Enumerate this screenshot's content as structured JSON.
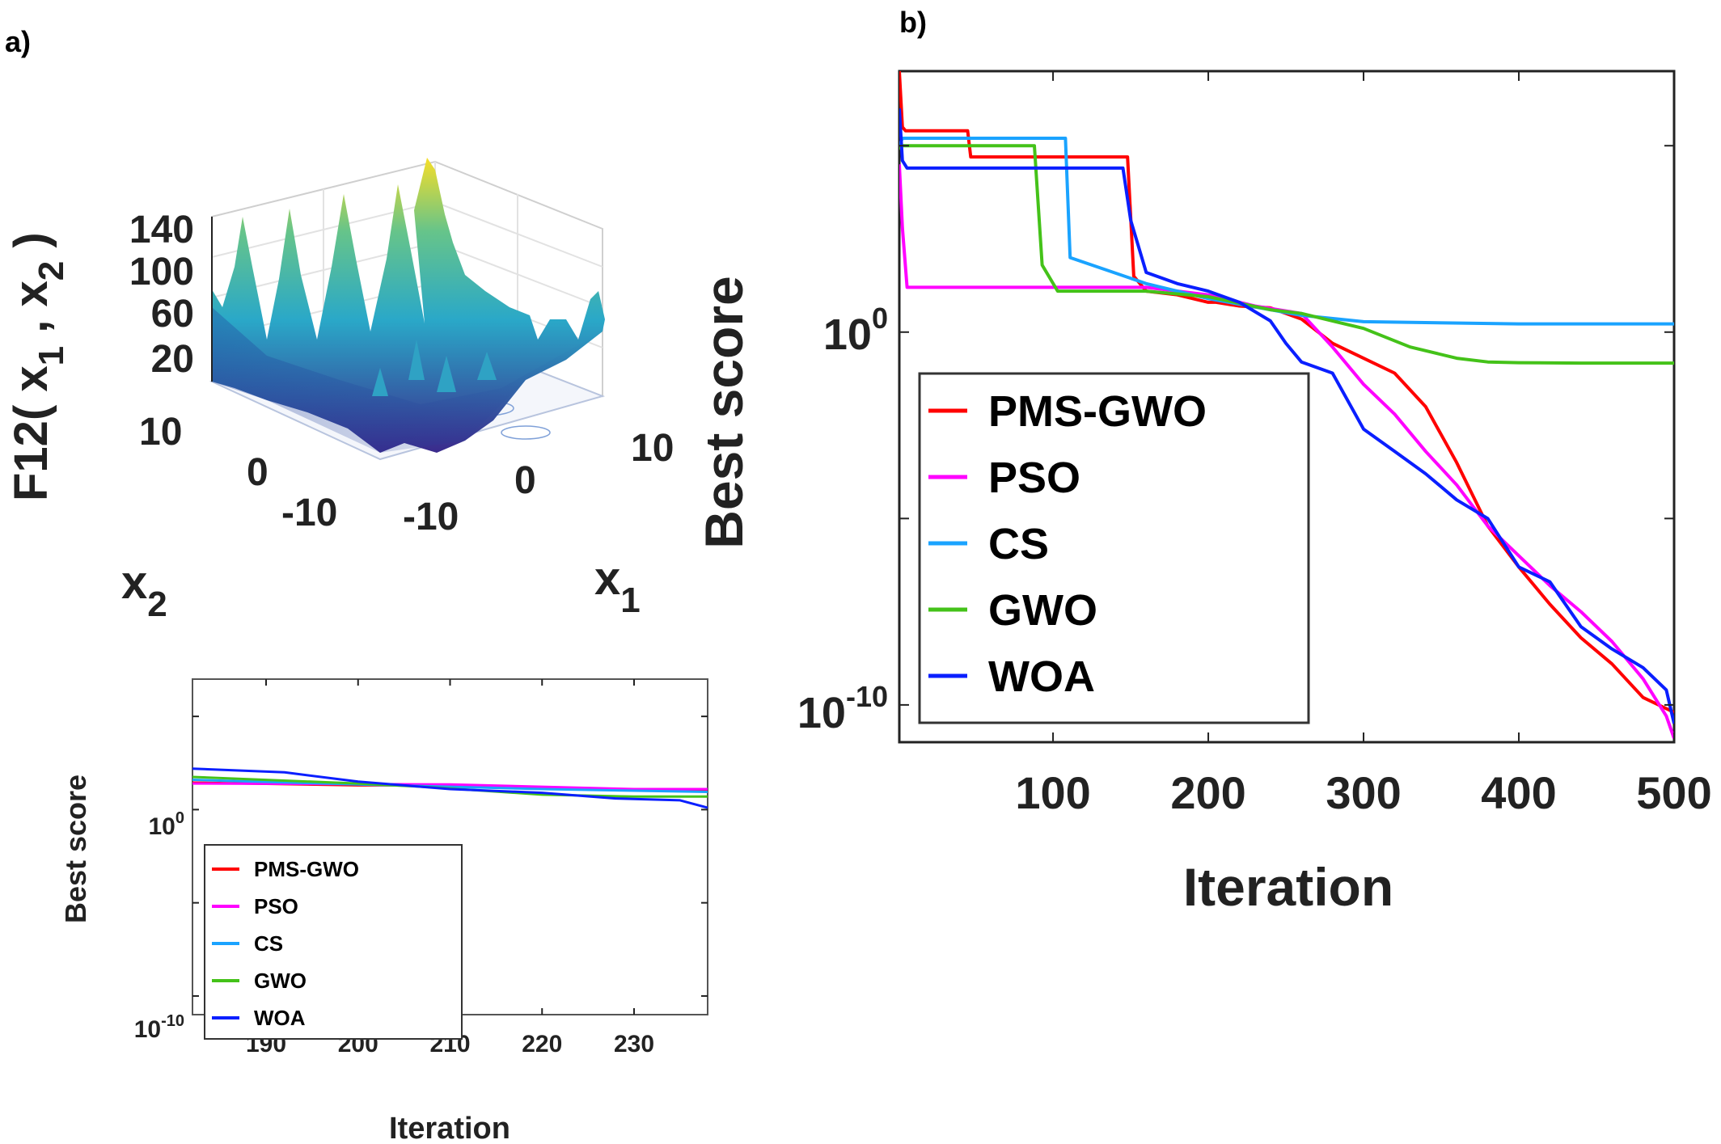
{
  "panels": {
    "a_label": "a)",
    "b_label": "b)"
  },
  "surface": {
    "zlabel": "F12( x",
    "zlabel_sub1": "1",
    "zlabel_sep": " , x",
    "zlabel_sub2": "2",
    "zlabel_end": " )",
    "z_ticks": [
      "140",
      "100",
      "60",
      "20"
    ],
    "x2_label": "x",
    "x2_label_sub": "2",
    "x1_label": "x",
    "x1_label_sub": "1",
    "x2_ticks": [
      "10",
      "0",
      "-10"
    ],
    "x1_ticks": [
      "-10",
      "0",
      "10"
    ],
    "colors": {
      "low": "#3b2a8c",
      "mid": "#2aa8c8",
      "high": "#f6de28"
    }
  },
  "chart_data": [
    {
      "type": "line",
      "id": "main",
      "title": "",
      "xlabel": "Iteration",
      "ylabel": "Best score",
      "xlim": [
        1,
        500
      ],
      "ylim_log10": [
        -11,
        7
      ],
      "yscale": "log",
      "x_ticks": [
        "100",
        "200",
        "300",
        "400",
        "500"
      ],
      "y_ticks": [
        {
          "base": "10",
          "exp": "0"
        },
        {
          "base": "10",
          "exp": "-10"
        }
      ],
      "legend_position": "lower-left",
      "series": [
        {
          "name": "PMS-GWO",
          "color": "#ff0000",
          "x": [
            1,
            3,
            5,
            45,
            47,
            148,
            152,
            160,
            180,
            200,
            205,
            220,
            240,
            260,
            280,
            300,
            320,
            340,
            360,
            380,
            400,
            420,
            440,
            460,
            480,
            500
          ],
          "log10_y": [
            7,
            5.5,
            5.4,
            5.4,
            4.7,
            4.7,
            1.5,
            1.1,
            1.0,
            0.8,
            0.8,
            0.7,
            0.65,
            0.35,
            -0.3,
            -0.7,
            -1.1,
            -2.0,
            -3.5,
            -5.2,
            -6.3,
            -7.3,
            -8.2,
            -8.9,
            -9.8,
            -10.2
          ]
        },
        {
          "name": "PSO",
          "color": "#ff00ff",
          "x": [
            1,
            3,
            6,
            10,
            160,
            200,
            230,
            260,
            280,
            300,
            320,
            340,
            360,
            380,
            400,
            420,
            440,
            460,
            480,
            495,
            500
          ],
          "log10_y": [
            4.5,
            2.8,
            1.2,
            1.2,
            1.2,
            1.0,
            0.7,
            0.5,
            -0.4,
            -1.4,
            -2.2,
            -3.2,
            -4.1,
            -5.2,
            -6.0,
            -6.8,
            -7.5,
            -8.3,
            -9.3,
            -10.3,
            -10.9
          ]
        },
        {
          "name": "CS",
          "color": "#1aa3ff",
          "x": [
            1,
            3,
            108,
            111,
            160,
            180,
            200,
            260,
            300,
            400,
            500
          ],
          "log10_y": [
            5.0,
            5.2,
            5.2,
            2.0,
            1.3,
            1.1,
            0.9,
            0.45,
            0.28,
            0.22,
            0.22
          ]
        },
        {
          "name": "GWO",
          "color": "#44c219",
          "x": [
            1,
            3,
            88,
            93,
            103,
            160,
            200,
            240,
            260,
            300,
            330,
            360,
            380,
            400,
            440,
            500
          ],
          "log10_y": [
            4.9,
            5.0,
            5.0,
            1.8,
            1.1,
            1.1,
            0.95,
            0.6,
            0.5,
            0.1,
            -0.4,
            -0.7,
            -0.8,
            -0.82,
            -0.83,
            -0.83
          ]
        },
        {
          "name": "WOA",
          "color": "#0a1fff",
          "x": [
            1,
            3,
            6,
            145,
            150,
            160,
            180,
            200,
            220,
            240,
            250,
            260,
            280,
            300,
            320,
            340,
            360,
            380,
            400,
            420,
            440,
            460,
            480,
            495,
            500
          ],
          "log10_y": [
            6.0,
            4.6,
            4.4,
            4.4,
            3.0,
            1.6,
            1.3,
            1.1,
            0.8,
            0.3,
            -0.3,
            -0.8,
            -1.1,
            -2.6,
            -3.2,
            -3.8,
            -4.5,
            -5.0,
            -6.3,
            -6.7,
            -7.9,
            -8.5,
            -9.0,
            -9.6,
            -10.5
          ]
        }
      ]
    },
    {
      "type": "line",
      "id": "inset",
      "title": "",
      "xlabel": "Iteration",
      "ylabel": "Best score",
      "xlim": [
        182,
        238
      ],
      "ylim_log10": [
        -11,
        7
      ],
      "yscale": "log",
      "x_ticks": [
        "190",
        "200",
        "210",
        "220",
        "230"
      ],
      "y_ticks": [
        {
          "base": "10",
          "exp": "0"
        },
        {
          "base": "10",
          "exp": "-10"
        }
      ],
      "legend_position": "lower-left",
      "series": [
        {
          "name": "PMS-GWO",
          "color": "#ff0000",
          "x": [
            182,
            200,
            205,
            220,
            238
          ],
          "log10_y": [
            1.45,
            1.3,
            1.3,
            1.15,
            1.05
          ]
        },
        {
          "name": "PSO",
          "color": "#ff00ff",
          "x": [
            182,
            210,
            230,
            238
          ],
          "log10_y": [
            1.4,
            1.35,
            1.1,
            1.1
          ]
        },
        {
          "name": "CS",
          "color": "#1aa3ff",
          "x": [
            182,
            200,
            220,
            238
          ],
          "log10_y": [
            1.6,
            1.35,
            1.1,
            0.95
          ]
        },
        {
          "name": "GWO",
          "color": "#44c219",
          "x": [
            182,
            200,
            208,
            220,
            230,
            238
          ],
          "log10_y": [
            1.75,
            1.4,
            1.2,
            0.8,
            0.7,
            0.7
          ]
        },
        {
          "name": "WOA",
          "color": "#0a1fff",
          "x": [
            182,
            192,
            200,
            210,
            220,
            228,
            235,
            238
          ],
          "log10_y": [
            2.2,
            2.0,
            1.5,
            1.1,
            0.9,
            0.6,
            0.5,
            0.1
          ]
        }
      ]
    }
  ]
}
